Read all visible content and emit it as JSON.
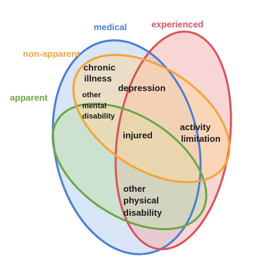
{
  "sets": {
    "medical": {
      "label": "medical",
      "color": "#4a7fd4",
      "fill": "#b8d2f0"
    },
    "experienced": {
      "label": "experienced",
      "color": "#d9545a",
      "fill": "#f2b4b4"
    },
    "non_apparent": {
      "label": "non-apparent",
      "color": "#f5a33b",
      "fill": "#fcd7a0"
    },
    "apparent": {
      "label": "apparent",
      "color": "#6aa745",
      "fill": "#c2dcae"
    }
  },
  "regions": {
    "chronic_illness": [
      "chronic",
      "illness"
    ],
    "other_mental_disability": [
      "other",
      "mental",
      "disability"
    ],
    "depression": [
      "depression"
    ],
    "injured": [
      "injured"
    ],
    "activity_limitation": [
      "activity",
      "limitation"
    ],
    "other_physical_disability": [
      "other",
      "physical",
      "disability"
    ]
  }
}
